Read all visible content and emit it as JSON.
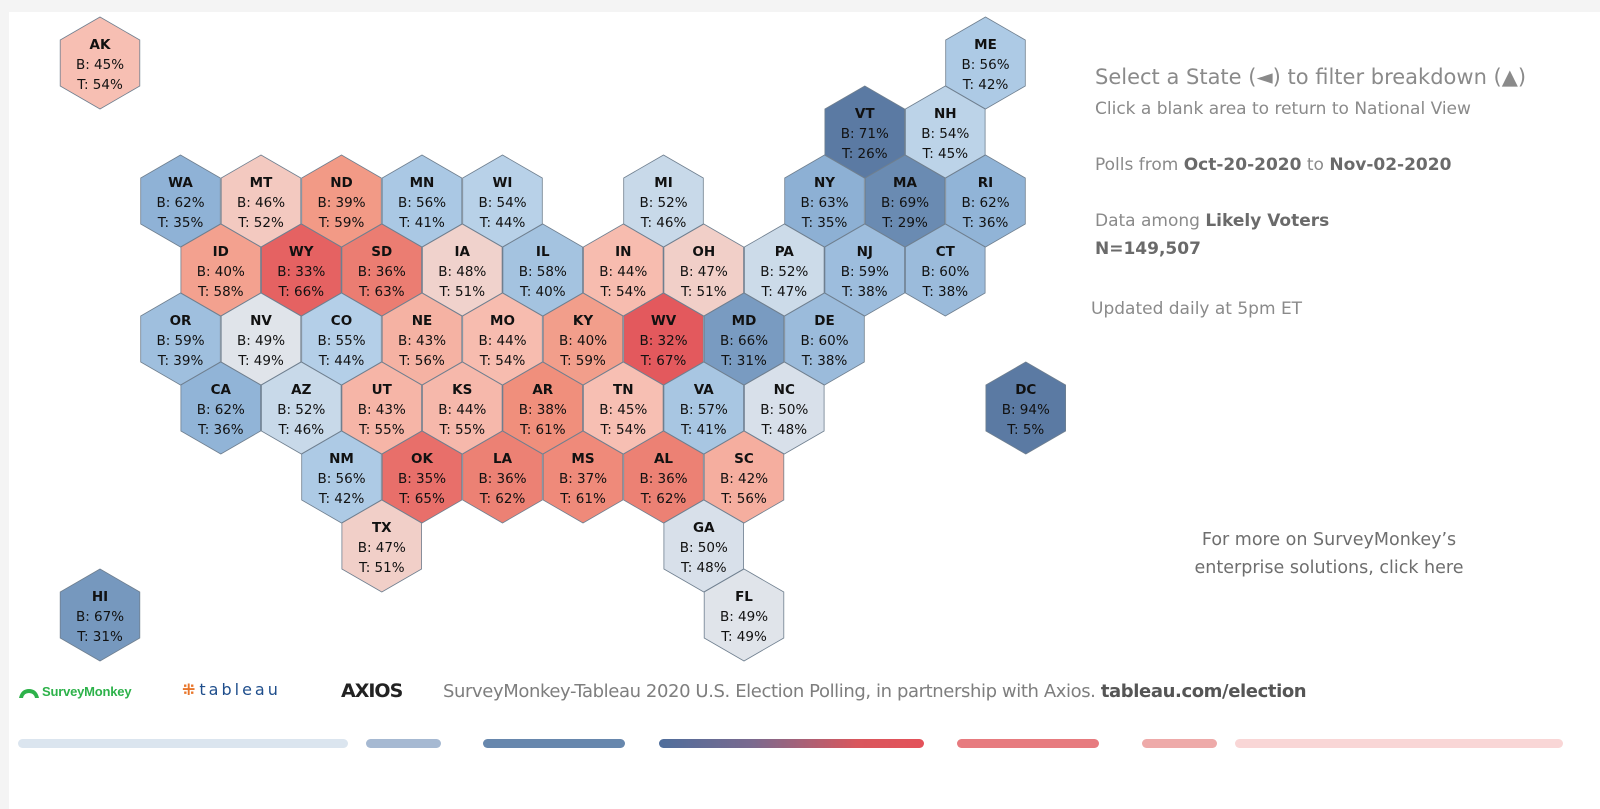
{
  "instructions": {
    "select_text": "Select a State (◄) to filter breakdown (▲)",
    "blank_text": "Click a blank area to return to National View"
  },
  "polls": {
    "prefix": "Polls from ",
    "start": "Oct-20-2020",
    "middle": " to ",
    "end": "Nov-02-2020"
  },
  "data_among": {
    "prefix": "Data among ",
    "group": "Likely Voters",
    "n": "N=149,507"
  },
  "updated": "Updated daily at 5pm ET",
  "more_link": {
    "line1": "For more on SurveyMonkey’s",
    "line2": "enterprise solutions, click here"
  },
  "footer": {
    "surveymonkey": "SurveyMonkey",
    "tableau": "tableau",
    "axios": "AXIOS",
    "credit": "SurveyMonkey-Tableau 2020 U.S. Election Polling, in partnership with Axios. ",
    "credit_link": "tableau.com/election"
  },
  "colors": {
    "biden_strong": "#5b7aa3",
    "biden_lean": "#a9c8e5",
    "neutral": "#d9d9d9",
    "trump_lean": "#f6b4a4",
    "trump_strong": "#e2545a"
  },
  "chart_data": {
    "type": "heatmap",
    "value_labels": {
      "biden": "B: ",
      "trump": "T: "
    },
    "states": [
      {
        "abbr": "AK",
        "row": 0,
        "col": 0,
        "b": 45,
        "t": 54
      },
      {
        "abbr": "ME",
        "row": 0,
        "col": 11,
        "b": 56,
        "t": 42
      },
      {
        "abbr": "VT",
        "row": 1,
        "col": 9.5,
        "b": 71,
        "t": 26
      },
      {
        "abbr": "NH",
        "row": 1,
        "col": 10.5,
        "b": 54,
        "t": 45
      },
      {
        "abbr": "WA",
        "row": 2,
        "col": 1,
        "b": 62,
        "t": 35
      },
      {
        "abbr": "MT",
        "row": 2,
        "col": 2,
        "b": 46,
        "t": 52
      },
      {
        "abbr": "ND",
        "row": 2,
        "col": 3,
        "b": 39,
        "t": 59
      },
      {
        "abbr": "MN",
        "row": 2,
        "col": 4,
        "b": 56,
        "t": 41
      },
      {
        "abbr": "WI",
        "row": 2,
        "col": 5,
        "b": 54,
        "t": 44
      },
      {
        "abbr": "MI",
        "row": 2,
        "col": 7,
        "b": 52,
        "t": 46
      },
      {
        "abbr": "NY",
        "row": 2,
        "col": 9,
        "b": 63,
        "t": 35
      },
      {
        "abbr": "MA",
        "row": 2,
        "col": 10,
        "b": 69,
        "t": 29
      },
      {
        "abbr": "RI",
        "row": 2,
        "col": 11,
        "b": 62,
        "t": 36
      },
      {
        "abbr": "ID",
        "row": 3,
        "col": 1.5,
        "b": 40,
        "t": 58
      },
      {
        "abbr": "WY",
        "row": 3,
        "col": 2.5,
        "b": 33,
        "t": 66
      },
      {
        "abbr": "SD",
        "row": 3,
        "col": 3.5,
        "b": 36,
        "t": 63
      },
      {
        "abbr": "IA",
        "row": 3,
        "col": 4.5,
        "b": 48,
        "t": 51
      },
      {
        "abbr": "IL",
        "row": 3,
        "col": 5.5,
        "b": 58,
        "t": 40
      },
      {
        "abbr": "IN",
        "row": 3,
        "col": 6.5,
        "b": 44,
        "t": 54
      },
      {
        "abbr": "OH",
        "row": 3,
        "col": 7.5,
        "b": 47,
        "t": 51
      },
      {
        "abbr": "PA",
        "row": 3,
        "col": 8.5,
        "b": 52,
        "t": 47
      },
      {
        "abbr": "NJ",
        "row": 3,
        "col": 9.5,
        "b": 59,
        "t": 38
      },
      {
        "abbr": "CT",
        "row": 3,
        "col": 10.5,
        "b": 60,
        "t": 38
      },
      {
        "abbr": "OR",
        "row": 4,
        "col": 1,
        "b": 59,
        "t": 39
      },
      {
        "abbr": "NV",
        "row": 4,
        "col": 2,
        "b": 49,
        "t": 49
      },
      {
        "abbr": "CO",
        "row": 4,
        "col": 3,
        "b": 55,
        "t": 44
      },
      {
        "abbr": "NE",
        "row": 4,
        "col": 4,
        "b": 43,
        "t": 56
      },
      {
        "abbr": "MO",
        "row": 4,
        "col": 5,
        "b": 44,
        "t": 54
      },
      {
        "abbr": "KY",
        "row": 4,
        "col": 6,
        "b": 40,
        "t": 59
      },
      {
        "abbr": "WV",
        "row": 4,
        "col": 7,
        "b": 32,
        "t": 67
      },
      {
        "abbr": "MD",
        "row": 4,
        "col": 8,
        "b": 66,
        "t": 31
      },
      {
        "abbr": "DE",
        "row": 4,
        "col": 9,
        "b": 60,
        "t": 38
      },
      {
        "abbr": "CA",
        "row": 5,
        "col": 1.5,
        "b": 62,
        "t": 36
      },
      {
        "abbr": "AZ",
        "row": 5,
        "col": 2.5,
        "b": 52,
        "t": 46
      },
      {
        "abbr": "UT",
        "row": 5,
        "col": 3.5,
        "b": 43,
        "t": 55
      },
      {
        "abbr": "KS",
        "row": 5,
        "col": 4.5,
        "b": 44,
        "t": 55
      },
      {
        "abbr": "AR",
        "row": 5,
        "col": 5.5,
        "b": 38,
        "t": 61
      },
      {
        "abbr": "TN",
        "row": 5,
        "col": 6.5,
        "b": 45,
        "t": 54
      },
      {
        "abbr": "VA",
        "row": 5,
        "col": 7.5,
        "b": 57,
        "t": 41
      },
      {
        "abbr": "NC",
        "row": 5,
        "col": 8.5,
        "b": 50,
        "t": 48
      },
      {
        "abbr": "DC",
        "row": 5,
        "col": 11.5,
        "b": 94,
        "t": 5
      },
      {
        "abbr": "NM",
        "row": 6,
        "col": 3,
        "b": 56,
        "t": 42
      },
      {
        "abbr": "OK",
        "row": 6,
        "col": 4,
        "b": 35,
        "t": 65
      },
      {
        "abbr": "LA",
        "row": 6,
        "col": 5,
        "b": 36,
        "t": 62
      },
      {
        "abbr": "MS",
        "row": 6,
        "col": 6,
        "b": 37,
        "t": 61
      },
      {
        "abbr": "AL",
        "row": 6,
        "col": 7,
        "b": 36,
        "t": 62
      },
      {
        "abbr": "SC",
        "row": 6,
        "col": 8,
        "b": 42,
        "t": 56
      },
      {
        "abbr": "TX",
        "row": 7,
        "col": 3.5,
        "b": 47,
        "t": 51
      },
      {
        "abbr": "GA",
        "row": 7,
        "col": 7.5,
        "b": 50,
        "t": 48
      },
      {
        "abbr": "HI",
        "row": 8,
        "col": 0,
        "b": 67,
        "t": 31
      },
      {
        "abbr": "FL",
        "row": 8,
        "col": 8,
        "b": 49,
        "t": 49
      }
    ]
  }
}
